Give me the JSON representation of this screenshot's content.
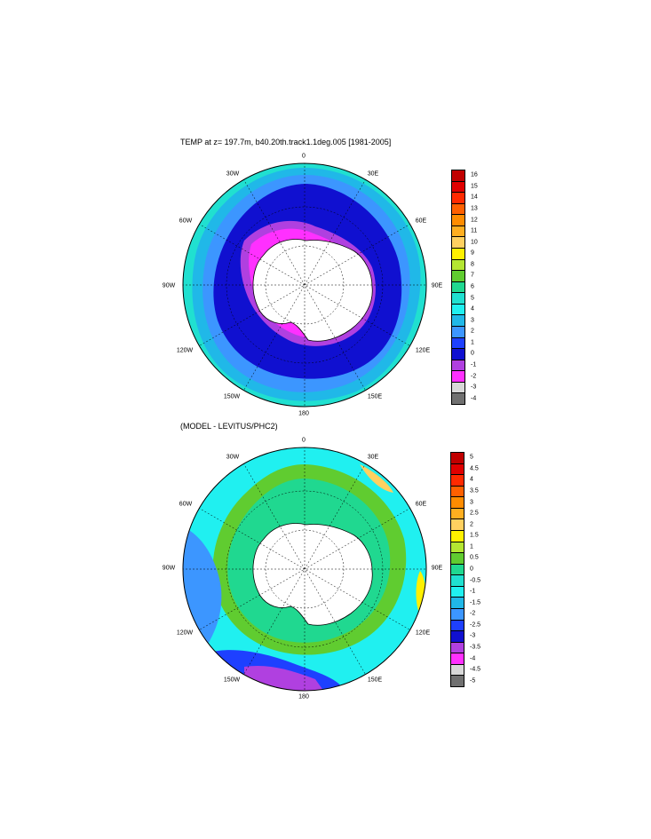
{
  "maps": [
    {
      "title": "TEMP at z= 197.7m, b40.20th.track1.1deg.005 [1981-2005]",
      "lon_labels": {
        "l0": "0",
        "l30e": "30E",
        "l60e": "60E",
        "l90e": "90E",
        "l120e": "120E",
        "l150e": "150E",
        "l180": "180",
        "l150w": "150W",
        "l120w": "120W",
        "l90w": "90W",
        "l60w": "60W",
        "l30w": "30W"
      },
      "colorbar": {
        "labels": [
          "16",
          "15",
          "14",
          "13",
          "12",
          "11",
          "10",
          "9",
          "8",
          "7",
          "6",
          "5",
          "4",
          "3",
          "2",
          "1",
          "0",
          "-1",
          "-2",
          "-3",
          "-4"
        ],
        "colors": [
          "#c00000",
          "#e00000",
          "#ff2a00",
          "#ff6000",
          "#ff8c00",
          "#ffae20",
          "#ffd060",
          "#fff000",
          "#b4e632",
          "#60cc30",
          "#20d890",
          "#20e0d0",
          "#20f0f0",
          "#20b8e8",
          "#3c96ff",
          "#1e40ff",
          "#1010d0",
          "#b040e0",
          "#ff30ff",
          "#d8d8d8",
          "#707070"
        ]
      }
    },
    {
      "title": "(MODEL - LEVITUS/PHC2)",
      "lon_labels": {
        "l0": "0",
        "l30e": "30E",
        "l60e": "60E",
        "l90e": "90E",
        "l120e": "120E",
        "l150e": "150E",
        "l180": "180",
        "l150w": "150W",
        "l120w": "120W",
        "l90w": "90W",
        "l60w": "60W",
        "l30w": "30W"
      },
      "colorbar": {
        "labels": [
          "5",
          "4.5",
          "4",
          "3.5",
          "3",
          "2.5",
          "2",
          "1.5",
          "1",
          "0.5",
          "0",
          "-0.5",
          "-1",
          "-1.5",
          "-2",
          "-2.5",
          "-3",
          "-3.5",
          "-4",
          "-4.5",
          "-5"
        ],
        "colors": [
          "#c00000",
          "#e00000",
          "#ff2a00",
          "#ff6000",
          "#ff8c00",
          "#ffae20",
          "#ffd060",
          "#fff000",
          "#b4e632",
          "#60cc30",
          "#20d890",
          "#20e0d0",
          "#20f0f0",
          "#20b8e8",
          "#3c96ff",
          "#1e40ff",
          "#1010d0",
          "#b040e0",
          "#ff30ff",
          "#d8d8d8",
          "#707070"
        ]
      }
    }
  ]
}
